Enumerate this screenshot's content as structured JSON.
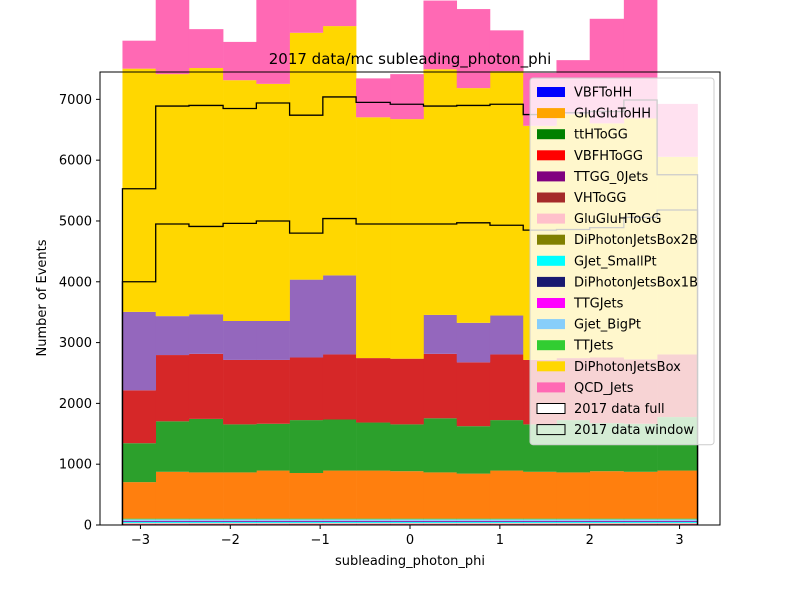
{
  "chart_data": {
    "type": "bar",
    "stacked": true,
    "title": "2017 data/mc subleading_photon_phi",
    "xlabel": "subleading_photon_phi",
    "ylabel": "Number of Events",
    "xlim": [
      -3.45,
      3.45
    ],
    "ylim": [
      0,
      7450
    ],
    "xticks": [
      -3,
      -2,
      -1,
      0,
      1,
      2,
      3
    ],
    "xtick_labels": [
      "−3",
      "−2",
      "−1",
      "0",
      "1",
      "2",
      "3"
    ],
    "yticks": [
      0,
      1000,
      2000,
      3000,
      4000,
      5000,
      6000,
      7000
    ],
    "ytick_labels": [
      "0",
      "1000",
      "2000",
      "3000",
      "4000",
      "5000",
      "6000",
      "7000"
    ],
    "legend_position": "upper right",
    "bin_edges": [
      -3.2,
      -2.83,
      -2.46,
      -2.08,
      -1.71,
      -1.34,
      -0.97,
      -0.6,
      -0.22,
      0.15,
      0.52,
      0.89,
      1.26,
      1.63,
      2.0,
      2.38,
      2.75,
      3.2
    ],
    "series": [
      {
        "name": "VBFToHH",
        "color": "#0000ff",
        "values": [
          1,
          1,
          1,
          1,
          1,
          1,
          1,
          1,
          1,
          1,
          1,
          1,
          1,
          1,
          1,
          1,
          1
        ]
      },
      {
        "name": "GluGluToHH",
        "color": "#ffa500",
        "values": [
          1,
          1,
          1,
          1,
          1,
          1,
          1,
          1,
          1,
          1,
          1,
          1,
          1,
          1,
          1,
          1,
          1
        ]
      },
      {
        "name": "ttHToGG",
        "color": "#008000",
        "values": [
          5,
          5,
          5,
          5,
          5,
          5,
          5,
          5,
          5,
          5,
          5,
          5,
          5,
          5,
          5,
          5,
          5
        ]
      },
      {
        "name": "VBFHToGG",
        "color": "#ff0000",
        "values": [
          5,
          5,
          5,
          5,
          5,
          5,
          5,
          5,
          5,
          5,
          5,
          5,
          5,
          5,
          5,
          5,
          5
        ]
      },
      {
        "name": "TTGG_0Jets",
        "color": "#800080",
        "values": [
          3,
          3,
          3,
          3,
          3,
          3,
          3,
          3,
          3,
          3,
          3,
          3,
          3,
          3,
          3,
          3,
          3
        ]
      },
      {
        "name": "VHToGG",
        "color": "#a52a2a",
        "values": [
          4,
          4,
          4,
          4,
          4,
          4,
          4,
          4,
          4,
          4,
          4,
          4,
          4,
          4,
          4,
          4,
          4
        ]
      },
      {
        "name": "GluGluHToGG",
        "color": "#ffc0cb",
        "values": [
          12,
          12,
          12,
          12,
          12,
          12,
          12,
          12,
          12,
          12,
          12,
          12,
          12,
          12,
          12,
          12,
          12
        ]
      },
      {
        "name": "DiPhotonJetsBox2B",
        "color": "#808000",
        "values": [
          4,
          4,
          4,
          4,
          4,
          4,
          4,
          4,
          4,
          4,
          4,
          4,
          4,
          4,
          4,
          4,
          4
        ]
      },
      {
        "name": "GJet_SmallPt",
        "color": "#00ffff",
        "values": [
          15,
          15,
          15,
          15,
          15,
          15,
          15,
          15,
          15,
          15,
          15,
          15,
          15,
          15,
          15,
          15,
          15
        ]
      },
      {
        "name": "DiPhotonJetsBox1B",
        "color": "#191970",
        "values": [
          10,
          10,
          10,
          10,
          10,
          10,
          10,
          10,
          10,
          10,
          10,
          10,
          10,
          10,
          10,
          10,
          10
        ]
      },
      {
        "name": "TTGJets",
        "color": "#ff00ff",
        "values": [
          8,
          8,
          8,
          8,
          8,
          8,
          8,
          8,
          8,
          8,
          8,
          8,
          8,
          8,
          8,
          8,
          8
        ]
      },
      {
        "name": "Gjet_BigPt",
        "color": "#87cefa",
        "values": [
          25,
          25,
          25,
          25,
          25,
          25,
          25,
          25,
          25,
          25,
          25,
          25,
          25,
          25,
          25,
          25,
          25
        ]
      },
      {
        "name": "TTJets",
        "color": "#32cd32",
        "values": [
          12,
          12,
          12,
          12,
          12,
          12,
          12,
          12,
          12,
          12,
          12,
          12,
          12,
          12,
          12,
          12,
          12
        ]
      },
      {
        "name": "DiPhotonJetsBox",
        "color": "#ffd700",
        "values": [
          4000,
          3980,
          4050,
          3960,
          3900,
          4060,
          4100,
          3960,
          3940,
          4040,
          3860,
          4020,
          3850,
          4010,
          3850,
          3960,
          3250
        ]
      },
      {
        "name": "QCD_Jets",
        "color": "#ff69b4",
        "values": [
          460,
          1270,
          640,
          630,
          2570,
          1800,
          1200,
          640,
          740,
          1130,
          1300,
          670,
          870,
          890,
          1720,
          2010,
          870
        ]
      }
    ],
    "hidden_layers": [
      {
        "color": "#ff7f0e",
        "values": [
          600,
          770,
          760,
          760,
          790,
          750,
          790,
          790,
          780,
          760,
          740,
          790,
          770,
          760,
          780,
          770,
          790
        ]
      },
      {
        "color": "#2ca02c",
        "values": [
          640,
          830,
          880,
          790,
          770,
          870,
          840,
          790,
          770,
          890,
          780,
          830,
          780,
          860,
          790,
          790,
          880
        ]
      },
      {
        "color": "#d62728",
        "values": [
          870,
          1090,
          1070,
          1060,
          1050,
          1030,
          1070,
          1060,
          1080,
          1060,
          1050,
          1080,
          1060,
          1020,
          1080,
          1060,
          1030
        ]
      },
      {
        "color": "#9467bd",
        "values": [
          1290,
          640,
          650,
          640,
          640,
          1280,
          1300,
          0,
          0,
          640,
          650,
          640,
          0,
          0,
          0,
          0,
          0
        ]
      }
    ],
    "data_full": [
      5530,
      6890,
      6900,
      6850,
      6940,
      6740,
      7040,
      6950,
      6920,
      6890,
      6900,
      6920,
      6750,
      6780,
      6800,
      6990,
      5760
    ],
    "data_window": [
      4000,
      4950,
      4910,
      4960,
      5000,
      4800,
      5040,
      4950,
      4950,
      4950,
      4970,
      4930,
      4850,
      4860,
      4890,
      5060,
      5180
    ]
  },
  "legend": {
    "items": [
      {
        "label": "VBFToHH",
        "color": "#0000ff"
      },
      {
        "label": "GluGluToHH",
        "color": "#ffa500"
      },
      {
        "label": "ttHToGG",
        "color": "#008000"
      },
      {
        "label": "VBFHToGG",
        "color": "#ff0000"
      },
      {
        "label": "TTGG_0Jets",
        "color": "#800080"
      },
      {
        "label": "VHToGG",
        "color": "#a52a2a"
      },
      {
        "label": "GluGluHToGG",
        "color": "#ffc0cb"
      },
      {
        "label": "DiPhotonJetsBox2B",
        "color": "#808000"
      },
      {
        "label": "GJet_SmallPt",
        "color": "#00ffff"
      },
      {
        "label": "DiPhotonJetsBox1B",
        "color": "#191970"
      },
      {
        "label": "TTGJets",
        "color": "#ff00ff"
      },
      {
        "label": "Gjet_BigPt",
        "color": "#87cefa"
      },
      {
        "label": "TTJets",
        "color": "#32cd32"
      },
      {
        "label": "DiPhotonJetsBox",
        "color": "#ffd700"
      },
      {
        "label": "QCD_Jets",
        "color": "#ff69b4"
      },
      {
        "label": "2017 data full",
        "color": "#ffffff",
        "outline": true
      },
      {
        "label": "2017 data window",
        "color": "#d7efd7",
        "outline": true
      }
    ]
  }
}
